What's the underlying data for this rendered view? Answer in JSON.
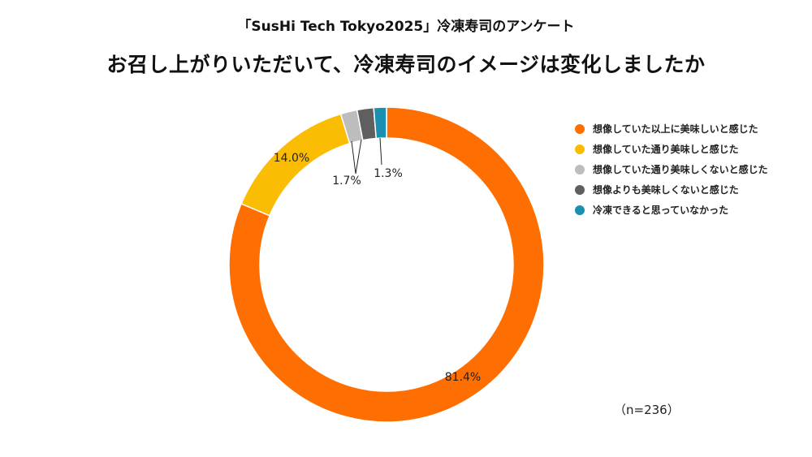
{
  "subtitle": "「SusHi Tech Tokyo2025」冷凍寿司のアンケート",
  "title": "お召し上がりいただいて、冷凍寿司のイメージは変化しましたか",
  "note": "（n=236）",
  "chart_data": {
    "type": "pie",
    "donut": true,
    "categories": [
      "想像していた以上に美味しいと感じた",
      "想像していた通り美味しと感じた",
      "想像していた通り美味しくないと感じた",
      "想像よりも美味しくないと感じた",
      "冷凍できると思っていなかった"
    ],
    "values": [
      81.4,
      14.0,
      1.7,
      1.7,
      1.3
    ],
    "data_labels": [
      "81.4%",
      "14.0%",
      "",
      "1.7%",
      "1.3%"
    ],
    "colors": [
      "#FF6E00",
      "#FBBC04",
      "#BDBDBD",
      "#5F5F5F",
      "#1A8FB0"
    ],
    "legend_position": "right",
    "start_angle": "top",
    "direction": "clockwise"
  }
}
